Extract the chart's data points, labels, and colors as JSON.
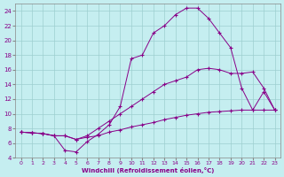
{
  "xlabel": "Windchill (Refroidissement éolien,°C)",
  "bg_color": "#c5eef0",
  "line_color": "#880088",
  "grid_color": "#9dcfcf",
  "xlim": [
    -0.5,
    23.5
  ],
  "ylim": [
    4,
    25
  ],
  "xticks": [
    0,
    1,
    2,
    3,
    4,
    5,
    6,
    7,
    8,
    9,
    10,
    11,
    12,
    13,
    14,
    15,
    16,
    17,
    18,
    19,
    20,
    21,
    22,
    23
  ],
  "yticks": [
    4,
    6,
    8,
    10,
    12,
    14,
    16,
    18,
    20,
    22,
    24
  ],
  "curve1_x": [
    0,
    1,
    2,
    3,
    4,
    5,
    6,
    7,
    8,
    9,
    10,
    11,
    12,
    13,
    14,
    15,
    16,
    17,
    18,
    19,
    20,
    21,
    22,
    23
  ],
  "curve1_y": [
    7.5,
    7.4,
    7.3,
    7.0,
    5.0,
    4.8,
    6.2,
    7.2,
    8.5,
    11.0,
    17.5,
    18.0,
    21.0,
    22.0,
    23.5,
    24.4,
    24.4,
    23.0,
    21.0,
    19.0,
    13.5,
    10.5,
    13.0,
    10.5
  ],
  "curve2_x": [
    0,
    1,
    2,
    3,
    4,
    5,
    6,
    7,
    8,
    9,
    10,
    11,
    12,
    13,
    14,
    15,
    16,
    17,
    18,
    19,
    20,
    21,
    22,
    23
  ],
  "curve2_y": [
    7.5,
    7.4,
    7.3,
    7.0,
    7.0,
    6.5,
    7.0,
    8.0,
    9.0,
    10.0,
    11.0,
    12.0,
    13.0,
    14.0,
    14.5,
    15.0,
    16.0,
    16.2,
    16.0,
    15.5,
    15.5,
    15.7,
    13.5,
    10.5
  ],
  "curve3_x": [
    0,
    1,
    2,
    3,
    4,
    5,
    6,
    7,
    8,
    9,
    10,
    11,
    12,
    13,
    14,
    15,
    16,
    17,
    18,
    19,
    20,
    21,
    22,
    23
  ],
  "curve3_y": [
    7.5,
    7.4,
    7.3,
    7.0,
    7.0,
    6.5,
    6.8,
    7.0,
    7.5,
    7.8,
    8.2,
    8.5,
    8.8,
    9.2,
    9.5,
    9.8,
    10.0,
    10.2,
    10.3,
    10.4,
    10.5,
    10.5,
    10.5,
    10.5
  ]
}
